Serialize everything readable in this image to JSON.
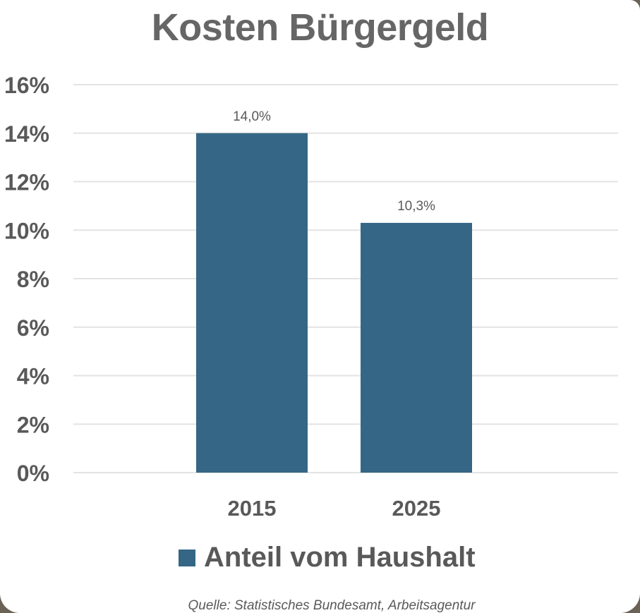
{
  "chart_data": {
    "type": "bar",
    "title": "Kosten Bürgergeld",
    "categories": [
      "2015",
      "2025"
    ],
    "series": [
      {
        "name": "Anteil vom Haushalt",
        "values": [
          14.0,
          10.3
        ],
        "data_labels": [
          "14,0%",
          "10,3%"
        ],
        "color": "#356685"
      }
    ],
    "ylim": [
      0,
      16
    ],
    "yticks": [
      0,
      2,
      4,
      6,
      8,
      10,
      12,
      14,
      16
    ],
    "ytick_labels": [
      "0%",
      "2%",
      "4%",
      "6%",
      "8%",
      "10%",
      "12%",
      "14%",
      "16%"
    ],
    "grid": true,
    "legend_position": "bottom"
  },
  "source_note": "Quelle: Statistisches Bundesamt, Arbeitsagentur",
  "colors": {
    "bar": "#356685",
    "gridline": "#e3e3e3",
    "axis_text": "#595959",
    "title_text": "#666666"
  }
}
